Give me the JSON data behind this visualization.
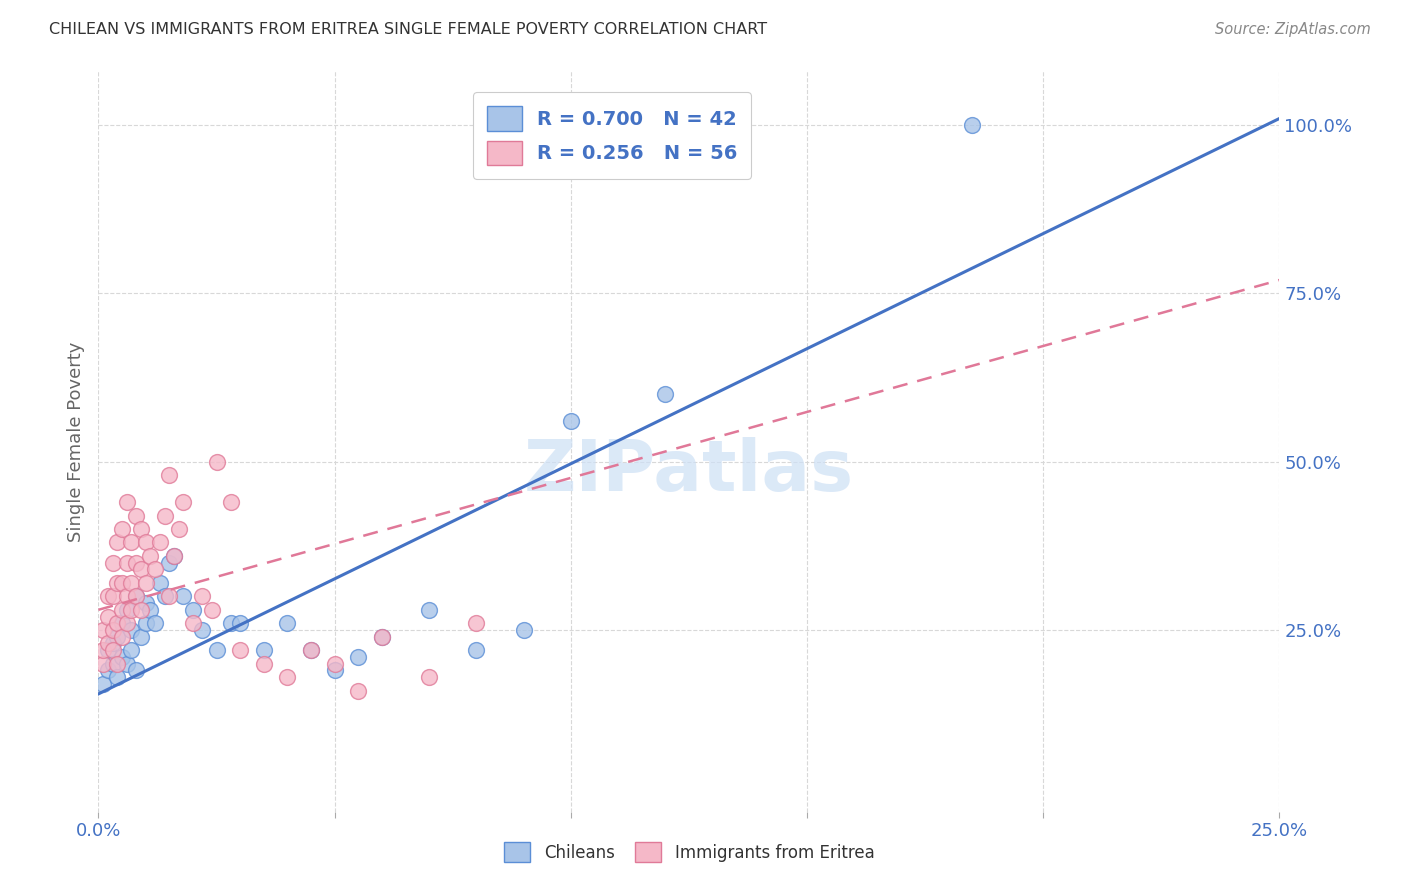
{
  "title": "CHILEAN VS IMMIGRANTS FROM ERITREA SINGLE FEMALE POVERTY CORRELATION CHART",
  "source": "Source: ZipAtlas.com",
  "ylabel": "Single Female Poverty",
  "xlim": [
    0.0,
    0.25
  ],
  "ylim": [
    -0.02,
    1.08
  ],
  "ytick_positions": [
    0.25,
    0.5,
    0.75,
    1.0
  ],
  "ytick_labels": [
    "25.0%",
    "50.0%",
    "75.0%",
    "100.0%"
  ],
  "xtick_positions": [
    0.0,
    0.05,
    0.1,
    0.15,
    0.2,
    0.25
  ],
  "xtick_display": [
    "0.0%",
    "",
    "",
    "",
    "",
    "25.0%"
  ],
  "legend_line1": "R = 0.700   N = 42",
  "legend_line2": "R = 0.256   N = 56",
  "chilean_color_fill": "#a8c4e8",
  "chilean_color_edge": "#5b8ed6",
  "eritrea_color_fill": "#f5b8c8",
  "eritrea_color_edge": "#e07a98",
  "chilean_line_color": "#4472c4",
  "eritrea_line_color": "#e07898",
  "legend_color": "#4472c4",
  "tick_color": "#4472c4",
  "grid_color": "#d8d8d8",
  "watermark": "ZIPatlas",
  "watermark_color": "#cde0f5",
  "background": "#ffffff",
  "chilean_trend_x": [
    0.0,
    0.25
  ],
  "chilean_trend_y": [
    0.155,
    1.01
  ],
  "eritrea_trend_x": [
    0.0,
    0.25
  ],
  "eritrea_trend_y": [
    0.28,
    0.77
  ],
  "chileans_x": [
    0.001,
    0.002,
    0.002,
    0.003,
    0.003,
    0.004,
    0.004,
    0.005,
    0.005,
    0.006,
    0.006,
    0.007,
    0.007,
    0.008,
    0.008,
    0.009,
    0.01,
    0.01,
    0.011,
    0.012,
    0.013,
    0.014,
    0.015,
    0.016,
    0.018,
    0.02,
    0.022,
    0.025,
    0.028,
    0.03,
    0.035,
    0.04,
    0.045,
    0.05,
    0.055,
    0.06,
    0.07,
    0.08,
    0.09,
    0.1,
    0.12,
    0.185
  ],
  "chileans_y": [
    0.17,
    0.19,
    0.22,
    0.2,
    0.23,
    0.18,
    0.24,
    0.21,
    0.26,
    0.2,
    0.28,
    0.22,
    0.25,
    0.19,
    0.3,
    0.24,
    0.26,
    0.29,
    0.28,
    0.26,
    0.32,
    0.3,
    0.35,
    0.36,
    0.3,
    0.28,
    0.25,
    0.22,
    0.26,
    0.26,
    0.22,
    0.26,
    0.22,
    0.19,
    0.21,
    0.24,
    0.28,
    0.22,
    0.25,
    0.56,
    0.6,
    1.0
  ],
  "eritrea_x": [
    0.001,
    0.001,
    0.001,
    0.002,
    0.002,
    0.002,
    0.003,
    0.003,
    0.003,
    0.003,
    0.004,
    0.004,
    0.004,
    0.004,
    0.005,
    0.005,
    0.005,
    0.005,
    0.006,
    0.006,
    0.006,
    0.006,
    0.007,
    0.007,
    0.007,
    0.008,
    0.008,
    0.008,
    0.009,
    0.009,
    0.009,
    0.01,
    0.01,
    0.011,
    0.012,
    0.013,
    0.014,
    0.015,
    0.015,
    0.016,
    0.017,
    0.018,
    0.02,
    0.022,
    0.024,
    0.025,
    0.028,
    0.03,
    0.035,
    0.04,
    0.045,
    0.05,
    0.055,
    0.06,
    0.07,
    0.08
  ],
  "eritrea_y": [
    0.2,
    0.22,
    0.25,
    0.23,
    0.27,
    0.3,
    0.22,
    0.25,
    0.3,
    0.35,
    0.2,
    0.26,
    0.32,
    0.38,
    0.24,
    0.28,
    0.32,
    0.4,
    0.26,
    0.3,
    0.35,
    0.44,
    0.28,
    0.32,
    0.38,
    0.3,
    0.35,
    0.42,
    0.28,
    0.34,
    0.4,
    0.32,
    0.38,
    0.36,
    0.34,
    0.38,
    0.42,
    0.3,
    0.48,
    0.36,
    0.4,
    0.44,
    0.26,
    0.3,
    0.28,
    0.5,
    0.44,
    0.22,
    0.2,
    0.18,
    0.22,
    0.2,
    0.16,
    0.24,
    0.18,
    0.26
  ]
}
